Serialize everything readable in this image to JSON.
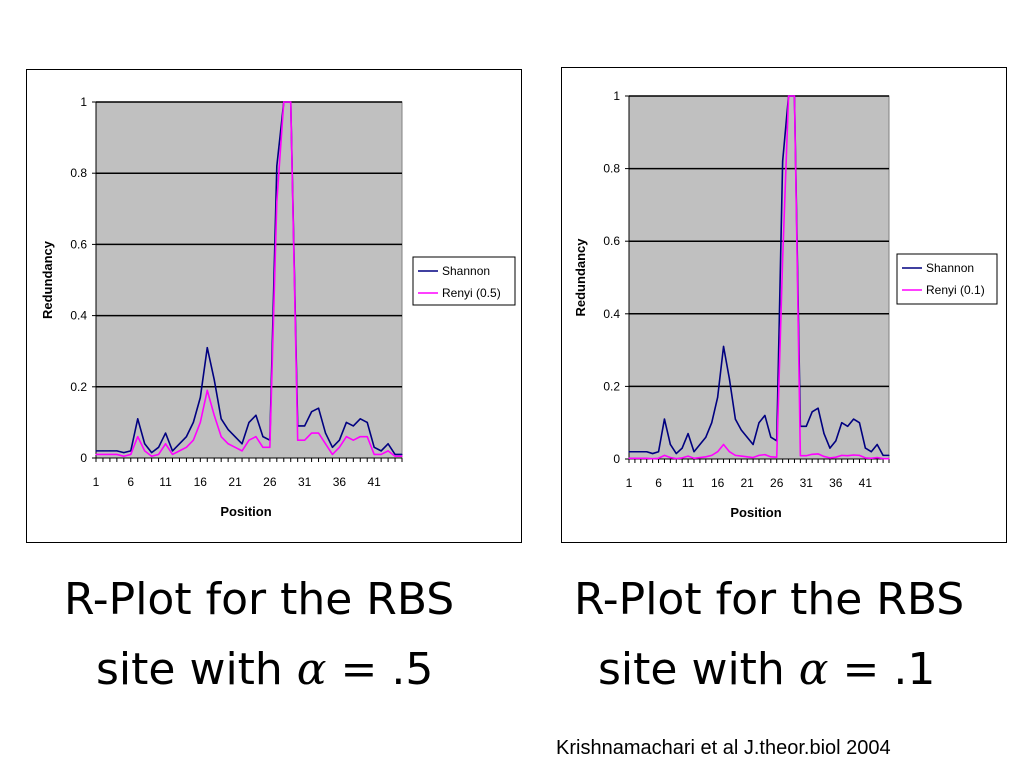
{
  "chart_data": [
    {
      "type": "line",
      "title": "",
      "xlabel": "Position",
      "ylabel": "Redundancy",
      "ylim": [
        0,
        1
      ],
      "yticks": [
        "0",
        "0.2",
        "0.4",
        "0.6",
        "0.8",
        "1"
      ],
      "xticks": [
        "1",
        "6",
        "11",
        "16",
        "21",
        "26",
        "31",
        "36",
        "41"
      ],
      "x": [
        1,
        2,
        3,
        4,
        5,
        6,
        7,
        8,
        9,
        10,
        11,
        12,
        13,
        14,
        15,
        16,
        17,
        18,
        19,
        20,
        21,
        22,
        23,
        24,
        25,
        26,
        27,
        28,
        29,
        30,
        31,
        32,
        33,
        34,
        35,
        36,
        37,
        38,
        39,
        40,
        41,
        42,
        43,
        44,
        45
      ],
      "grid": true,
      "plot_background": "#c0c0c0",
      "legend_position": "right",
      "series": [
        {
          "name": "Shannon",
          "color": "#000080",
          "values": [
            0.02,
            0.02,
            0.02,
            0.02,
            0.015,
            0.02,
            0.11,
            0.04,
            0.015,
            0.03,
            0.07,
            0.02,
            0.04,
            0.06,
            0.1,
            0.17,
            0.31,
            0.22,
            0.11,
            0.08,
            0.06,
            0.04,
            0.1,
            0.12,
            0.06,
            0.05,
            0.82,
            1.0,
            1.0,
            0.09,
            0.09,
            0.13,
            0.14,
            0.07,
            0.03,
            0.05,
            0.1,
            0.09,
            0.11,
            0.1,
            0.03,
            0.02,
            0.04,
            0.01,
            0.01
          ]
        },
        {
          "name": "Renyi (0.5)",
          "color": "#ff00ff",
          "values": [
            0.01,
            0.01,
            0.01,
            0.01,
            0.005,
            0.01,
            0.06,
            0.02,
            0.005,
            0.01,
            0.04,
            0.01,
            0.02,
            0.03,
            0.05,
            0.1,
            0.19,
            0.12,
            0.06,
            0.04,
            0.03,
            0.02,
            0.05,
            0.06,
            0.03,
            0.03,
            0.72,
            1.0,
            1.0,
            0.05,
            0.05,
            0.07,
            0.07,
            0.04,
            0.01,
            0.03,
            0.06,
            0.05,
            0.06,
            0.06,
            0.01,
            0.01,
            0.02,
            0.005,
            0.005
          ]
        }
      ]
    },
    {
      "type": "line",
      "title": "",
      "xlabel": "Position",
      "ylabel": "Redundancy",
      "ylim": [
        0,
        1
      ],
      "yticks": [
        "0",
        "0.2",
        "0.4",
        "0.6",
        "0.8",
        "1"
      ],
      "xticks": [
        "1",
        "6",
        "11",
        "16",
        "21",
        "26",
        "31",
        "36",
        "41"
      ],
      "x": [
        1,
        2,
        3,
        4,
        5,
        6,
        7,
        8,
        9,
        10,
        11,
        12,
        13,
        14,
        15,
        16,
        17,
        18,
        19,
        20,
        21,
        22,
        23,
        24,
        25,
        26,
        27,
        28,
        29,
        30,
        31,
        32,
        33,
        34,
        35,
        36,
        37,
        38,
        39,
        40,
        41,
        42,
        43,
        44,
        45
      ],
      "grid": true,
      "plot_background": "#c0c0c0",
      "legend_position": "right",
      "series": [
        {
          "name": "Shannon",
          "color": "#000080",
          "values": [
            0.02,
            0.02,
            0.02,
            0.02,
            0.015,
            0.02,
            0.11,
            0.04,
            0.015,
            0.03,
            0.07,
            0.02,
            0.04,
            0.06,
            0.1,
            0.17,
            0.31,
            0.22,
            0.11,
            0.08,
            0.06,
            0.04,
            0.1,
            0.12,
            0.06,
            0.05,
            0.82,
            1.0,
            1.0,
            0.09,
            0.09,
            0.13,
            0.14,
            0.07,
            0.03,
            0.05,
            0.1,
            0.09,
            0.11,
            0.1,
            0.03,
            0.02,
            0.04,
            0.01,
            0.01
          ]
        },
        {
          "name": "Renyi (0.1)",
          "color": "#ff00ff",
          "values": [
            0.002,
            0.002,
            0.002,
            0.002,
            0.001,
            0.002,
            0.01,
            0.004,
            0.001,
            0.003,
            0.008,
            0.002,
            0.004,
            0.006,
            0.01,
            0.02,
            0.04,
            0.02,
            0.01,
            0.008,
            0.006,
            0.004,
            0.01,
            0.012,
            0.006,
            0.005,
            0.55,
            1.0,
            1.0,
            0.009,
            0.009,
            0.013,
            0.014,
            0.007,
            0.003,
            0.005,
            0.01,
            0.009,
            0.011,
            0.01,
            0.003,
            0.002,
            0.004,
            0.001,
            0.001
          ]
        }
      ]
    }
  ],
  "captions": {
    "left_line1": "R-Plot for the RBS",
    "left_line2_prefix": "site with ",
    "left_alpha": "α",
    "left_equals": "=",
    "left_value": ".5",
    "right_line1": "R-Plot for the RBS",
    "right_line2_prefix": "site with ",
    "right_alpha": "α",
    "right_equals": "=",
    "right_value": ".1"
  },
  "citation": "Krishnamachari et al J.theor.biol 2004"
}
